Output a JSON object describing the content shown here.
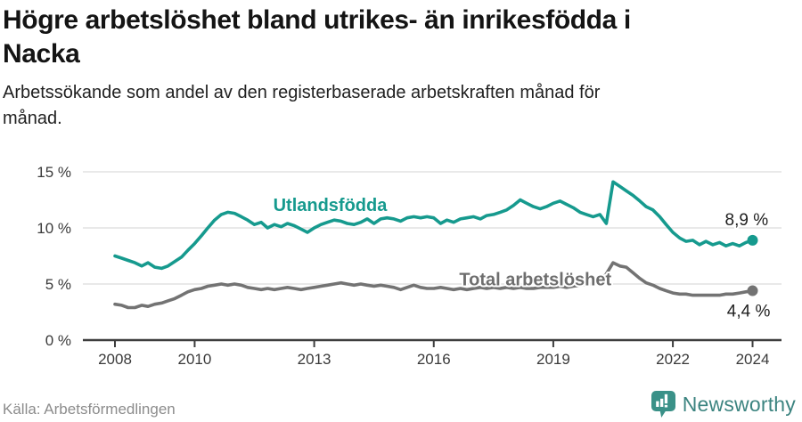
{
  "header": {
    "title_lines": [
      "Högre arbetslöshet bland utrikes- än inrikesfödda i",
      "Nacka"
    ],
    "subtitle_lines": [
      "Arbetssökande som andel av den registerbaserade arbetskraften månad för",
      "månad."
    ]
  },
  "chart_data": {
    "type": "line",
    "title": "Högre arbetslöshet bland utrikes- än inrikesfödda i Nacka",
    "subtitle": "Arbetssökande som andel av den registerbaserade arbetskraften månad för månad.",
    "xlabel": "",
    "ylabel": "",
    "xlim": [
      2007.2,
      2024.7
    ],
    "ylim": [
      0,
      15.8
    ],
    "grid": "horizontal",
    "legend_position": "inline-labels",
    "x_ticks": [
      {
        "v": 2008,
        "label": "2008"
      },
      {
        "v": 2010,
        "label": "2010"
      },
      {
        "v": 2013,
        "label": "2013"
      },
      {
        "v": 2016,
        "label": "2016"
      },
      {
        "v": 2019,
        "label": "2019"
      },
      {
        "v": 2022,
        "label": "2022"
      },
      {
        "v": 2024,
        "label": "2024"
      }
    ],
    "y_ticks": [
      {
        "v": 0,
        "label": "0 %"
      },
      {
        "v": 5,
        "label": "5 %"
      },
      {
        "v": 10,
        "label": "10 %"
      },
      {
        "v": 15,
        "label": "15 %"
      }
    ],
    "series": [
      {
        "name": "Utlandsfödda",
        "color": "#169a8e",
        "end_value_label": "8,9 %",
        "name_label_pos": {
          "x": 2013.4,
          "y": 11.5
        },
        "end_label_pos": {
          "x": 2023.85,
          "y": 10.25
        },
        "points": [
          [
            2008.0,
            7.5
          ],
          [
            2008.17,
            7.3
          ],
          [
            2008.33,
            7.1
          ],
          [
            2008.5,
            6.9
          ],
          [
            2008.67,
            6.6
          ],
          [
            2008.83,
            6.9
          ],
          [
            2009.0,
            6.5
          ],
          [
            2009.17,
            6.4
          ],
          [
            2009.33,
            6.6
          ],
          [
            2009.5,
            7.0
          ],
          [
            2009.67,
            7.4
          ],
          [
            2009.83,
            8.0
          ],
          [
            2010.0,
            8.6
          ],
          [
            2010.17,
            9.3
          ],
          [
            2010.33,
            10.0
          ],
          [
            2010.5,
            10.7
          ],
          [
            2010.67,
            11.2
          ],
          [
            2010.83,
            11.4
          ],
          [
            2011.0,
            11.3
          ],
          [
            2011.17,
            11.0
          ],
          [
            2011.33,
            10.7
          ],
          [
            2011.5,
            10.3
          ],
          [
            2011.67,
            10.5
          ],
          [
            2011.83,
            10.0
          ],
          [
            2012.0,
            10.3
          ],
          [
            2012.17,
            10.1
          ],
          [
            2012.33,
            10.4
          ],
          [
            2012.5,
            10.2
          ],
          [
            2012.67,
            9.9
          ],
          [
            2012.83,
            9.6
          ],
          [
            2013.0,
            10.0
          ],
          [
            2013.17,
            10.3
          ],
          [
            2013.33,
            10.5
          ],
          [
            2013.5,
            10.7
          ],
          [
            2013.67,
            10.6
          ],
          [
            2013.83,
            10.4
          ],
          [
            2014.0,
            10.3
          ],
          [
            2014.17,
            10.5
          ],
          [
            2014.33,
            10.8
          ],
          [
            2014.5,
            10.4
          ],
          [
            2014.67,
            10.8
          ],
          [
            2014.83,
            10.9
          ],
          [
            2015.0,
            10.8
          ],
          [
            2015.17,
            10.6
          ],
          [
            2015.33,
            10.9
          ],
          [
            2015.5,
            11.0
          ],
          [
            2015.67,
            10.9
          ],
          [
            2015.83,
            11.0
          ],
          [
            2016.0,
            10.9
          ],
          [
            2016.17,
            10.4
          ],
          [
            2016.33,
            10.7
          ],
          [
            2016.5,
            10.5
          ],
          [
            2016.67,
            10.8
          ],
          [
            2016.83,
            10.9
          ],
          [
            2017.0,
            11.0
          ],
          [
            2017.17,
            10.8
          ],
          [
            2017.33,
            11.1
          ],
          [
            2017.5,
            11.2
          ],
          [
            2017.67,
            11.4
          ],
          [
            2017.83,
            11.6
          ],
          [
            2018.0,
            12.0
          ],
          [
            2018.17,
            12.5
          ],
          [
            2018.33,
            12.2
          ],
          [
            2018.5,
            11.9
          ],
          [
            2018.67,
            11.7
          ],
          [
            2018.83,
            11.9
          ],
          [
            2019.0,
            12.2
          ],
          [
            2019.17,
            12.4
          ],
          [
            2019.33,
            12.1
          ],
          [
            2019.5,
            11.8
          ],
          [
            2019.67,
            11.4
          ],
          [
            2019.83,
            11.2
          ],
          [
            2020.0,
            11.0
          ],
          [
            2020.17,
            11.2
          ],
          [
            2020.33,
            10.4
          ],
          [
            2020.5,
            14.1
          ],
          [
            2020.67,
            13.7
          ],
          [
            2020.83,
            13.3
          ],
          [
            2021.0,
            12.9
          ],
          [
            2021.17,
            12.4
          ],
          [
            2021.33,
            11.9
          ],
          [
            2021.5,
            11.6
          ],
          [
            2021.67,
            11.0
          ],
          [
            2021.83,
            10.3
          ],
          [
            2022.0,
            9.6
          ],
          [
            2022.17,
            9.1
          ],
          [
            2022.33,
            8.8
          ],
          [
            2022.5,
            8.9
          ],
          [
            2022.67,
            8.5
          ],
          [
            2022.83,
            8.8
          ],
          [
            2023.0,
            8.5
          ],
          [
            2023.17,
            8.7
          ],
          [
            2023.33,
            8.4
          ],
          [
            2023.5,
            8.6
          ],
          [
            2023.67,
            8.4
          ],
          [
            2023.83,
            8.7
          ],
          [
            2024.0,
            8.9
          ]
        ]
      },
      {
        "name": "Total arbetslöshet",
        "color": "#737373",
        "end_value_label": "4,4 %",
        "name_label_pos": {
          "x": 2018.55,
          "y": 4.9
        },
        "end_label_pos": {
          "x": 2023.9,
          "y": 2.1
        },
        "points": [
          [
            2008.0,
            3.2
          ],
          [
            2008.17,
            3.1
          ],
          [
            2008.33,
            2.9
          ],
          [
            2008.5,
            2.9
          ],
          [
            2008.67,
            3.1
          ],
          [
            2008.83,
            3.0
          ],
          [
            2009.0,
            3.2
          ],
          [
            2009.17,
            3.3
          ],
          [
            2009.33,
            3.5
          ],
          [
            2009.5,
            3.7
          ],
          [
            2009.67,
            4.0
          ],
          [
            2009.83,
            4.3
          ],
          [
            2010.0,
            4.5
          ],
          [
            2010.17,
            4.6
          ],
          [
            2010.33,
            4.8
          ],
          [
            2010.5,
            4.9
          ],
          [
            2010.67,
            5.0
          ],
          [
            2010.83,
            4.9
          ],
          [
            2011.0,
            5.0
          ],
          [
            2011.17,
            4.9
          ],
          [
            2011.33,
            4.7
          ],
          [
            2011.5,
            4.6
          ],
          [
            2011.67,
            4.5
          ],
          [
            2011.83,
            4.6
          ],
          [
            2012.0,
            4.5
          ],
          [
            2012.17,
            4.6
          ],
          [
            2012.33,
            4.7
          ],
          [
            2012.5,
            4.6
          ],
          [
            2012.67,
            4.5
          ],
          [
            2012.83,
            4.6
          ],
          [
            2013.0,
            4.7
          ],
          [
            2013.17,
            4.8
          ],
          [
            2013.33,
            4.9
          ],
          [
            2013.5,
            5.0
          ],
          [
            2013.67,
            5.1
          ],
          [
            2013.83,
            5.0
          ],
          [
            2014.0,
            4.9
          ],
          [
            2014.17,
            5.0
          ],
          [
            2014.33,
            4.9
          ],
          [
            2014.5,
            4.8
          ],
          [
            2014.67,
            4.9
          ],
          [
            2014.83,
            4.8
          ],
          [
            2015.0,
            4.7
          ],
          [
            2015.17,
            4.5
          ],
          [
            2015.33,
            4.7
          ],
          [
            2015.5,
            4.9
          ],
          [
            2015.67,
            4.7
          ],
          [
            2015.83,
            4.6
          ],
          [
            2016.0,
            4.6
          ],
          [
            2016.17,
            4.7
          ],
          [
            2016.33,
            4.6
          ],
          [
            2016.5,
            4.5
          ],
          [
            2016.67,
            4.6
          ],
          [
            2016.83,
            4.5
          ],
          [
            2017.0,
            4.6
          ],
          [
            2017.17,
            4.7
          ],
          [
            2017.33,
            4.6
          ],
          [
            2017.5,
            4.7
          ],
          [
            2017.67,
            4.6
          ],
          [
            2017.83,
            4.7
          ],
          [
            2018.0,
            4.6
          ],
          [
            2018.17,
            4.7
          ],
          [
            2018.33,
            4.6
          ],
          [
            2018.5,
            4.6
          ],
          [
            2018.67,
            4.7
          ],
          [
            2018.83,
            4.7
          ],
          [
            2019.0,
            4.7
          ],
          [
            2019.17,
            4.8
          ],
          [
            2019.33,
            4.7
          ],
          [
            2019.5,
            4.8
          ],
          [
            2019.67,
            4.9
          ],
          [
            2019.83,
            5.0
          ],
          [
            2020.0,
            5.0
          ],
          [
            2020.17,
            5.2
          ],
          [
            2020.33,
            5.9
          ],
          [
            2020.5,
            6.9
          ],
          [
            2020.67,
            6.6
          ],
          [
            2020.83,
            6.5
          ],
          [
            2021.0,
            6.0
          ],
          [
            2021.17,
            5.5
          ],
          [
            2021.33,
            5.1
          ],
          [
            2021.5,
            4.9
          ],
          [
            2021.67,
            4.6
          ],
          [
            2021.83,
            4.4
          ],
          [
            2022.0,
            4.2
          ],
          [
            2022.17,
            4.1
          ],
          [
            2022.33,
            4.1
          ],
          [
            2022.5,
            4.0
          ],
          [
            2022.67,
            4.0
          ],
          [
            2022.83,
            4.0
          ],
          [
            2023.0,
            4.0
          ],
          [
            2023.17,
            4.0
          ],
          [
            2023.33,
            4.1
          ],
          [
            2023.5,
            4.1
          ],
          [
            2023.67,
            4.2
          ],
          [
            2023.83,
            4.3
          ],
          [
            2024.0,
            4.4
          ]
        ]
      }
    ],
    "colors": {
      "grid": "#dcdcdc",
      "axis": "#3d3d3d",
      "tick_text": "#3a3a3a",
      "value_text": "#1f1f1f"
    }
  },
  "footer": {
    "source": "Källa: Arbetsförmedlingen",
    "brand": "Newsworthy",
    "brand_color": "#3c8480",
    "brand_icon": "bar-chart-speech-bubble-icon",
    "brand_icon_color": "#3a9188"
  }
}
